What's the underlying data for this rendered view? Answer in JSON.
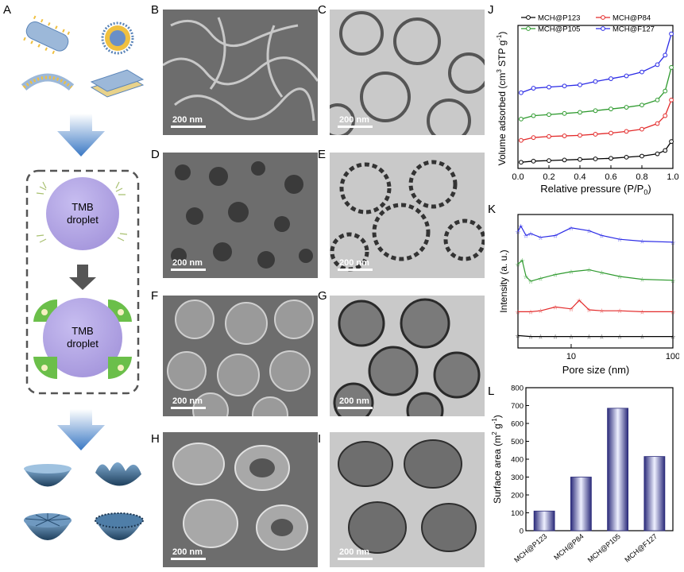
{
  "panels": {
    "A": "A",
    "B": "B",
    "C": "C",
    "D": "D",
    "E": "E",
    "F": "F",
    "G": "G",
    "H": "H",
    "I": "I",
    "J": "J",
    "K": "K",
    "L": "L"
  },
  "schematic": {
    "droplet_line1": "TMB",
    "droplet_line2": "droplet",
    "arrow_color": "#3a78c4",
    "droplet_color": "#b3a6e0"
  },
  "scale_bar_label": "200 nm",
  "micrographs": [
    {
      "panel": "B",
      "kind": "SEM",
      "scale": "200 nm"
    },
    {
      "panel": "C",
      "kind": "TEM",
      "scale": "200 nm"
    },
    {
      "panel": "D",
      "kind": "SEM",
      "scale": "200 nm"
    },
    {
      "panel": "E",
      "kind": "TEM",
      "scale": "200 nm"
    },
    {
      "panel": "F",
      "kind": "SEM",
      "scale": "200 nm"
    },
    {
      "panel": "G",
      "kind": "TEM",
      "scale": "200 nm"
    },
    {
      "panel": "H",
      "kind": "SEM",
      "scale": "200 nm"
    },
    {
      "panel": "I",
      "kind": "TEM",
      "scale": "200 nm"
    }
  ],
  "chart_data": [
    {
      "panel": "J",
      "type": "line",
      "xlabel": "Relative pressure (P/P",
      "xlabel_sub": "0",
      "xlabel_end": ")",
      "ylabel": "Volume adsorbed (cm",
      "ylabel_sup1": "3",
      "ylabel_mid": " STP g",
      "ylabel_sup2": "-1",
      "ylabel_end": ")",
      "xlim": [
        0.0,
        1.0
      ],
      "xticks": [
        "0.0",
        "0.2",
        "0.4",
        "0.6",
        "0.8",
        "1.0"
      ],
      "yticks_shown": false,
      "legend_placement": "top",
      "series": [
        {
          "name": "MCH@P123",
          "color": "#000000",
          "x": [
            0.02,
            0.1,
            0.2,
            0.3,
            0.4,
            0.5,
            0.6,
            0.7,
            0.8,
            0.9,
            0.95,
            0.99
          ],
          "y": [
            1,
            3,
            4,
            5,
            6,
            7,
            8,
            10,
            12,
            16,
            22,
            38
          ]
        },
        {
          "name": "MCH@P84",
          "color": "#e32a2a",
          "x": [
            0.02,
            0.1,
            0.2,
            0.3,
            0.4,
            0.5,
            0.6,
            0.7,
            0.8,
            0.9,
            0.95,
            0.99
          ],
          "y": [
            40,
            45,
            47,
            48,
            49,
            51,
            53,
            56,
            60,
            70,
            84,
            112
          ]
        },
        {
          "name": "MCH@P105",
          "color": "#2e9a2e",
          "x": [
            0.02,
            0.1,
            0.2,
            0.3,
            0.4,
            0.5,
            0.6,
            0.7,
            0.8,
            0.9,
            0.95,
            0.99
          ],
          "y": [
            78,
            84,
            86,
            88,
            90,
            93,
            96,
            99,
            103,
            112,
            128,
            170
          ]
        },
        {
          "name": "MCH@F127",
          "color": "#2a2ae6",
          "x": [
            0.02,
            0.1,
            0.2,
            0.3,
            0.4,
            0.5,
            0.6,
            0.7,
            0.8,
            0.9,
            0.95,
            0.99
          ],
          "y": [
            125,
            133,
            135,
            137,
            139,
            145,
            150,
            155,
            162,
            175,
            192,
            230
          ]
        }
      ]
    },
    {
      "panel": "K",
      "type": "line",
      "xlabel": "Pore size (nm)",
      "ylabel": "Intensity (a. u.)",
      "xscale": "log",
      "xlim": [
        3,
        100
      ],
      "xticks": [
        "10",
        "100"
      ],
      "yticks_shown": false,
      "series": [
        {
          "color": "#000000",
          "x": [
            3,
            4,
            5,
            7,
            10,
            15,
            20,
            30,
            50,
            100
          ],
          "y": [
            3,
            2,
            2,
            2,
            2,
            2,
            2,
            2,
            2,
            2
          ]
        },
        {
          "color": "#e32a2a",
          "x": [
            3,
            4,
            5,
            7,
            10,
            12,
            15,
            20,
            30,
            50,
            100
          ],
          "y": [
            28,
            28,
            29,
            33,
            31,
            40,
            30,
            29,
            29,
            28,
            28
          ]
        },
        {
          "color": "#2e9a2e",
          "x": [
            3,
            3.3,
            3.6,
            4,
            5,
            7,
            10,
            15,
            20,
            30,
            50,
            100
          ],
          "y": [
            78,
            82,
            65,
            60,
            63,
            67,
            70,
            72,
            69,
            65,
            62,
            61
          ]
        },
        {
          "color": "#2a2ae6",
          "x": [
            3,
            3.2,
            3.6,
            4,
            5,
            7,
            10,
            15,
            20,
            30,
            50,
            100
          ],
          "y": [
            112,
            118,
            108,
            110,
            106,
            108,
            116,
            113,
            108,
            104,
            102,
            101
          ]
        }
      ]
    },
    {
      "panel": "L",
      "type": "bar",
      "categories": [
        "MCH@P123",
        "MCH@P84",
        "MCH@P105",
        "MCH@F127"
      ],
      "values": [
        110,
        300,
        685,
        415
      ],
      "ylabel": "Surface area (m",
      "ylabel_sup1": "2",
      "ylabel_mid": " g",
      "ylabel_sup2": "-1",
      "ylabel_end": ")",
      "ylim": [
        0,
        800
      ],
      "yticks": [
        "0",
        "100",
        "200",
        "300",
        "400",
        "500",
        "600",
        "700",
        "800"
      ]
    }
  ]
}
